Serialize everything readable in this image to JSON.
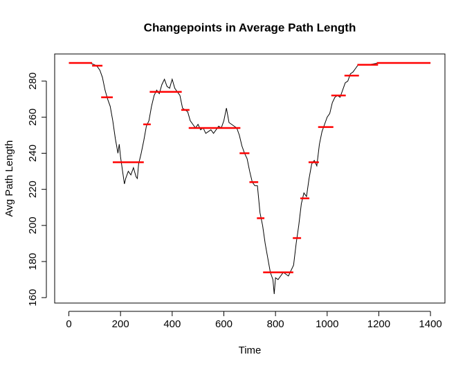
{
  "chart_data": {
    "type": "line",
    "title": "Changepoints in Average Path Length",
    "x_label": "Time",
    "y_label": "Avg Path Length",
    "xlim": [
      -55,
      1456
    ],
    "ylim": [
      157,
      295
    ],
    "xticks": [
      0,
      200,
      400,
      600,
      800,
      1000,
      1200,
      1400
    ],
    "yticks": [
      160,
      180,
      200,
      220,
      240,
      260,
      280
    ],
    "series": [
      {
        "color": "#000000",
        "x": [
          0,
          20,
          40,
          60,
          80,
          100,
          110,
          120,
          130,
          140,
          150,
          160,
          170,
          180,
          190,
          195,
          200,
          210,
          215,
          220,
          230,
          240,
          250,
          260,
          265,
          270,
          280,
          290,
          300,
          310,
          320,
          330,
          340,
          350,
          360,
          370,
          380,
          390,
          400,
          410,
          420,
          430,
          440,
          450,
          460,
          470,
          480,
          490,
          500,
          510,
          520,
          530,
          540,
          550,
          560,
          570,
          580,
          590,
          600,
          610,
          620,
          630,
          640,
          650,
          660,
          670,
          680,
          690,
          700,
          710,
          720,
          730,
          740,
          750,
          760,
          770,
          780,
          790,
          795,
          800,
          810,
          820,
          830,
          840,
          850,
          860,
          870,
          880,
          890,
          900,
          910,
          920,
          930,
          940,
          950,
          960,
          970,
          980,
          990,
          1000,
          1010,
          1020,
          1030,
          1040,
          1050,
          1060,
          1070,
          1080,
          1090,
          1100,
          1110,
          1120,
          1140,
          1160,
          1200,
          1300,
          1400
        ],
        "values": [
          290,
          290,
          290,
          290,
          290,
          289,
          288,
          286,
          282,
          275,
          270,
          266,
          258,
          248,
          240,
          245,
          238,
          228,
          223,
          226,
          230,
          228,
          232,
          227,
          226,
          234,
          240,
          247,
          255,
          258,
          266,
          272,
          275,
          273,
          278,
          281,
          277,
          276,
          281,
          276,
          274,
          272,
          265,
          264,
          263,
          258,
          256,
          254,
          256,
          253,
          254,
          251,
          252,
          253,
          251,
          253,
          255,
          254,
          258,
          265,
          257,
          256,
          255,
          254,
          250,
          244,
          240,
          237,
          230,
          224,
          222,
          222,
          207,
          200,
          190,
          182,
          174,
          170,
          162,
          171,
          170,
          172,
          174,
          173,
          172,
          175,
          178,
          190,
          200,
          212,
          218,
          216,
          226,
          234,
          236,
          233,
          245,
          252,
          256,
          260,
          262,
          268,
          271,
          272,
          271,
          275,
          279,
          280,
          284,
          285,
          287,
          289,
          289,
          289,
          290,
          290,
          290
        ]
      }
    ],
    "segments": {
      "color": "#ff0000",
      "start": [
        0,
        90,
        125,
        170,
        288,
        313,
        435,
        464,
        661,
        699,
        728,
        752,
        867,
        896,
        928,
        965,
        1016,
        1067,
        1117,
        1192
      ],
      "end": [
        90,
        130,
        170,
        290,
        317,
        437,
        467,
        664,
        699,
        733,
        757,
        869,
        899,
        931,
        968,
        1024,
        1072,
        1123,
        1197,
        1400
      ],
      "values": [
        290,
        288.5,
        271,
        235,
        256,
        274,
        264,
        254,
        240,
        224,
        204,
        174,
        193,
        215,
        235,
        254.5,
        272,
        283,
        289,
        290
      ]
    }
  }
}
